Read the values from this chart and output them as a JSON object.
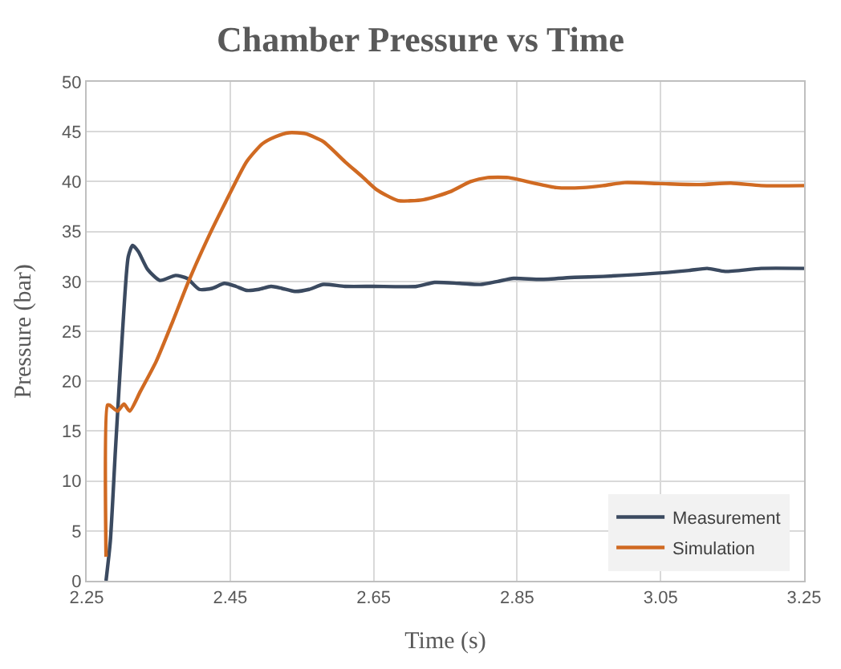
{
  "chart_data": {
    "type": "line",
    "title": "Chamber Pressure vs Time",
    "xlabel": "Time (s)",
    "ylabel": "Pressure (bar)",
    "xlim": [
      2.25,
      3.25
    ],
    "xticks": [
      2.25,
      2.45,
      2.65,
      2.85,
      3.05,
      3.25
    ],
    "ylim": [
      0,
      50
    ],
    "yticks": [
      0,
      5,
      10,
      15,
      20,
      25,
      30,
      35,
      40,
      45,
      50
    ],
    "grid": true,
    "legend": "bottom right",
    "line_style": "solid",
    "marker": "none",
    "series": [
      {
        "name": "Measurement",
        "color": "#3b4a60",
        "x": [
          2.277,
          2.283,
          2.29,
          2.3,
          2.308,
          2.314,
          2.322,
          2.335,
          2.352,
          2.374,
          2.39,
          2.407,
          2.425,
          2.442,
          2.458,
          2.473,
          2.49,
          2.507,
          2.522,
          2.54,
          2.56,
          2.58,
          2.61,
          2.65,
          2.71,
          2.735,
          2.77,
          2.8,
          2.823,
          2.845,
          2.883,
          2.93,
          2.97,
          3.02,
          3.06,
          3.09,
          3.115,
          3.14,
          3.19,
          3.25
        ],
        "values": [
          0,
          4,
          13,
          25,
          32.5,
          33.6,
          33,
          31.2,
          30.1,
          30.6,
          30.3,
          29.2,
          29.3,
          29.8,
          29.5,
          29.1,
          29.2,
          29.5,
          29.3,
          29.0,
          29.2,
          29.7,
          29.5,
          29.5,
          29.5,
          29.9,
          29.8,
          29.7,
          30.0,
          30.3,
          30.2,
          30.4,
          30.5,
          30.7,
          30.9,
          31.1,
          31.3,
          31.0,
          31.3,
          31.3
        ]
      },
      {
        "name": "Simulation",
        "color": "#d06a22",
        "x": [
          2.277,
          2.279,
          2.282,
          2.293,
          2.302,
          2.31,
          2.325,
          2.347,
          2.37,
          2.392,
          2.42,
          2.444,
          2.473,
          2.495,
          2.513,
          2.532,
          2.555,
          2.58,
          2.61,
          2.634,
          2.654,
          2.684,
          2.72,
          2.757,
          2.785,
          2.809,
          2.838,
          2.87,
          2.905,
          2.942,
          2.97,
          3.0,
          3.05,
          3.104,
          3.148,
          3.19,
          3.25
        ],
        "values": [
          2.4,
          17.6,
          17.6,
          17.0,
          17.7,
          17.0,
          19,
          22,
          26,
          30,
          34.5,
          38,
          42,
          43.8,
          44.5,
          44.9,
          44.8,
          44,
          42,
          40.5,
          39.2,
          38.1,
          38.2,
          39,
          40,
          40.4,
          40.4,
          39.9,
          39.4,
          39.4,
          39.6,
          39.9,
          39.8,
          39.7,
          39.85,
          39.6,
          39.6
        ]
      }
    ]
  }
}
